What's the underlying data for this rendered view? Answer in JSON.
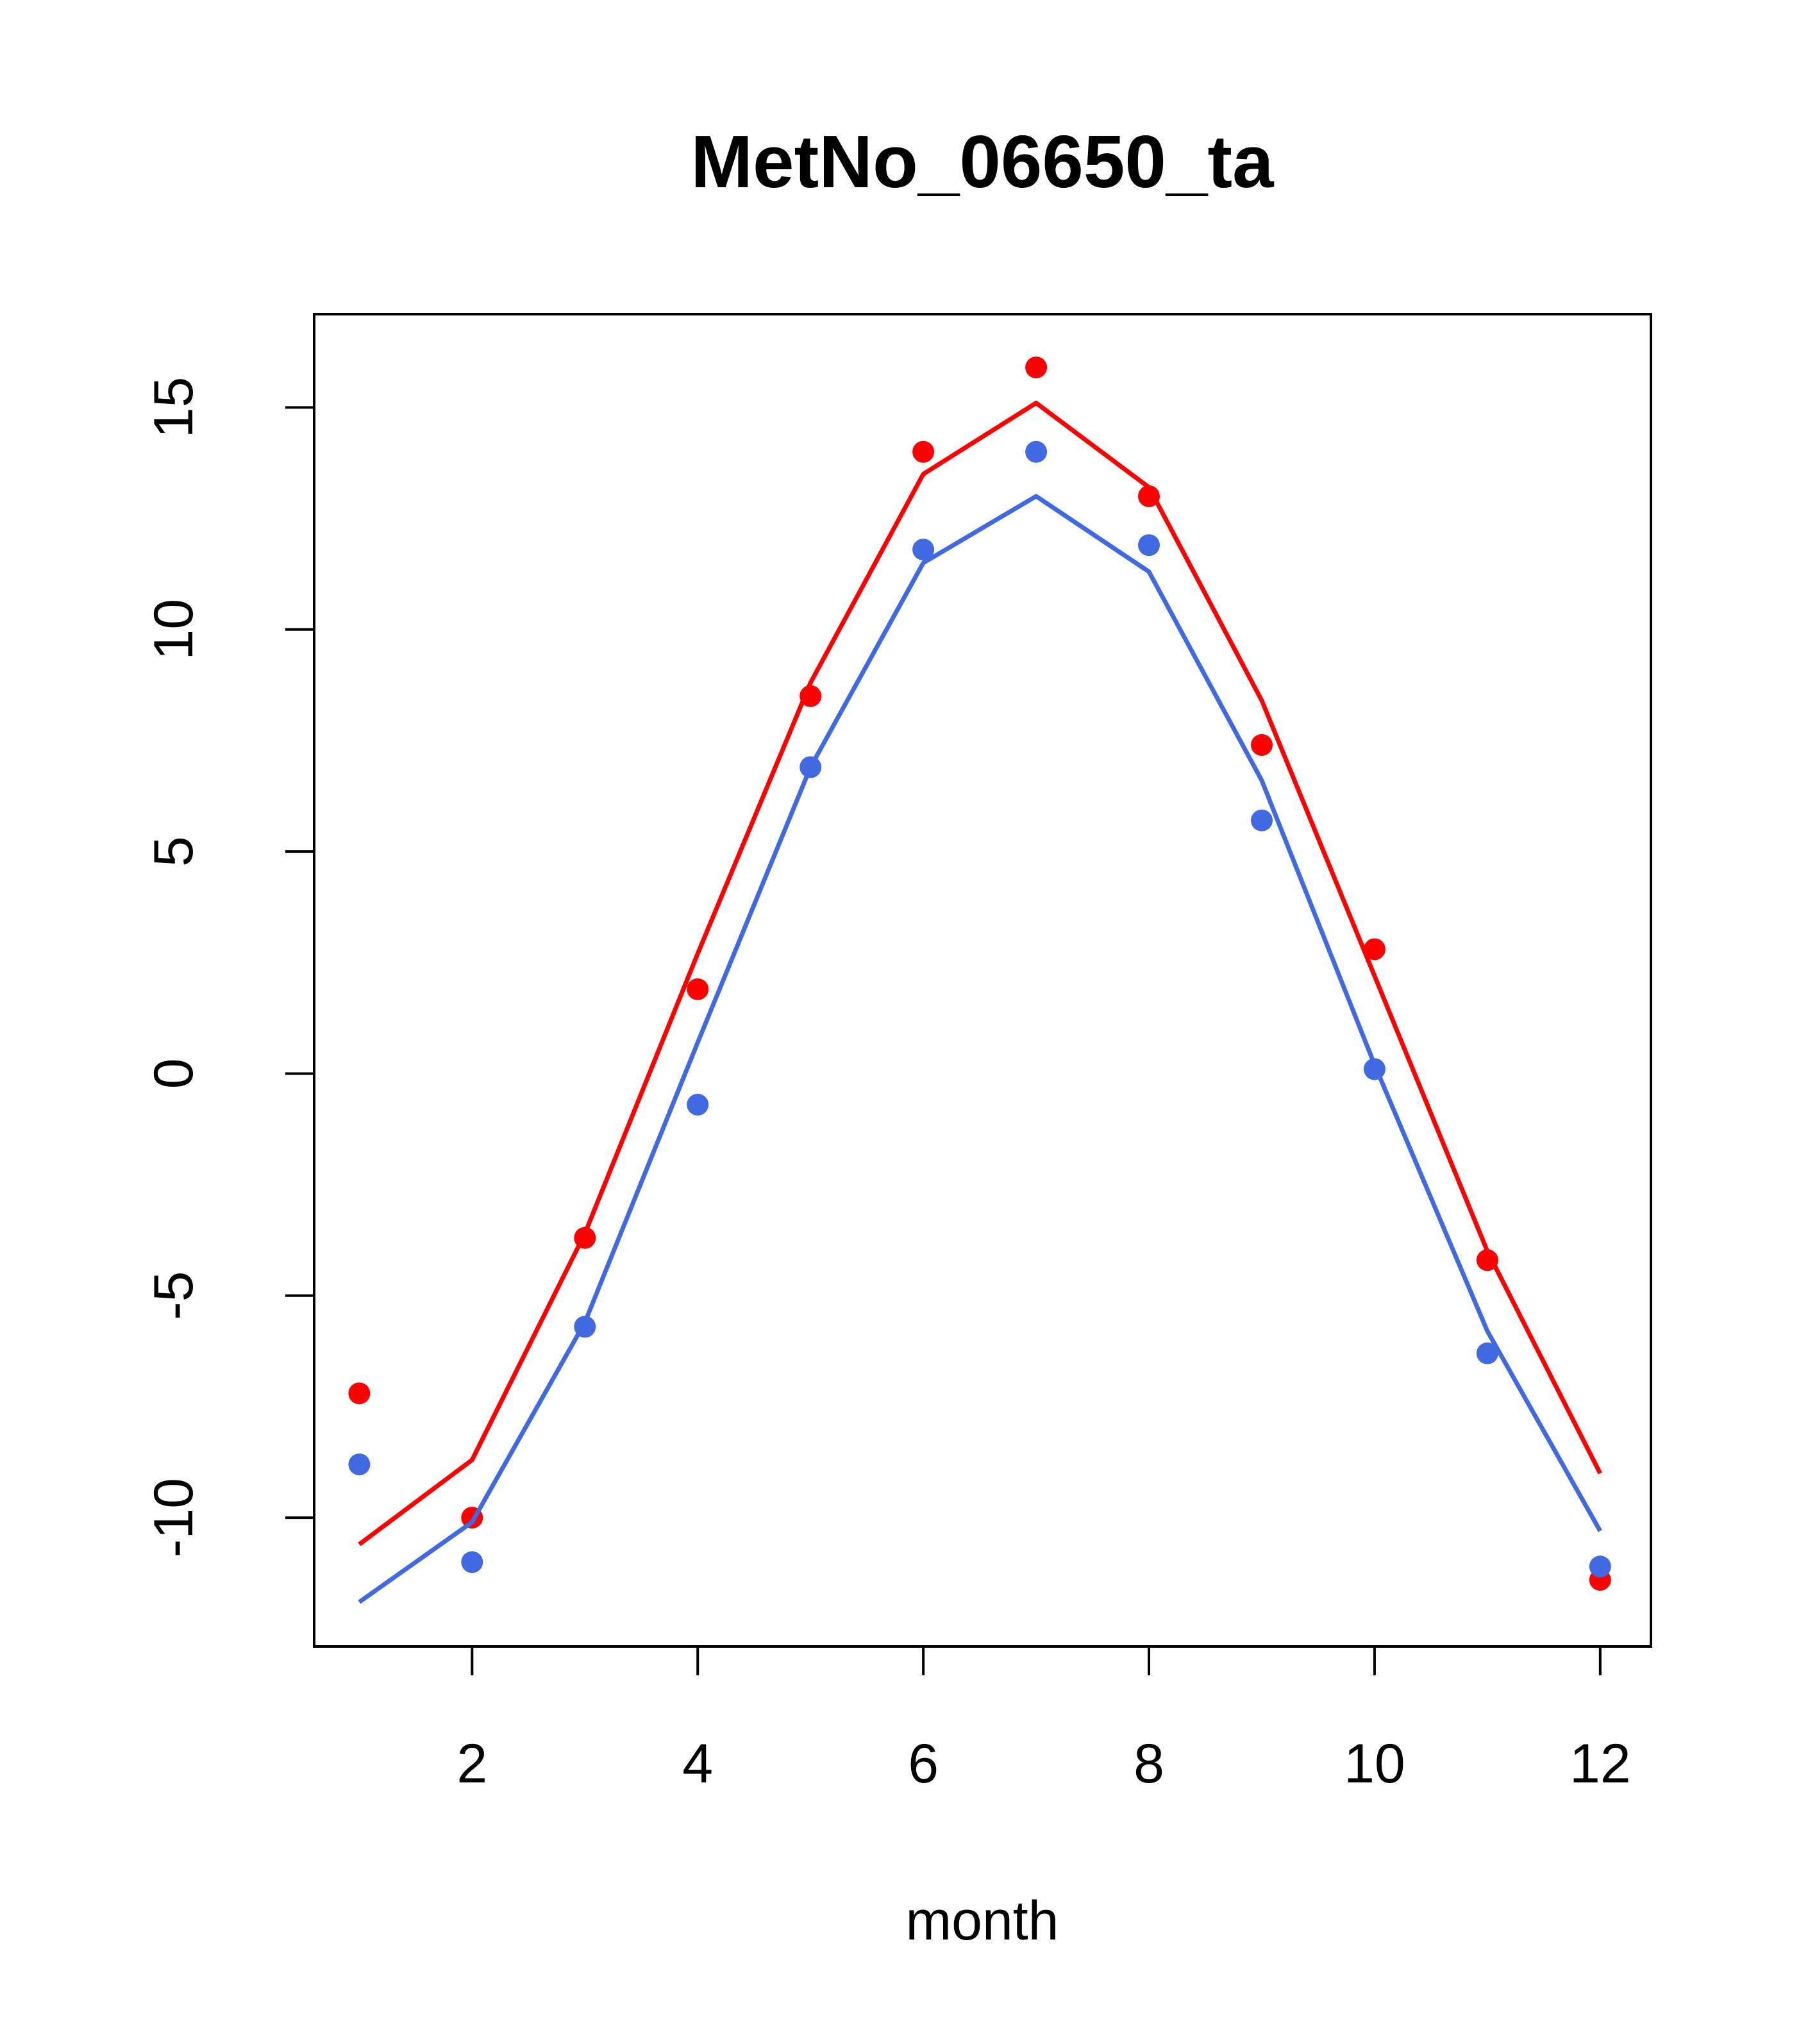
{
  "chart_data": {
    "type": "line",
    "title": "MetNo_06650_ta",
    "xlabel": "month",
    "ylabel": "",
    "xlim": [
      0.6,
      12.45
    ],
    "ylim": [
      -12.9,
      17.1
    ],
    "xticks": [
      2,
      4,
      6,
      8,
      10,
      12
    ],
    "yticks": [
      -10,
      -5,
      0,
      5,
      10,
      15
    ],
    "grid": false,
    "legend": "none",
    "series": [
      {
        "color": "#ff0000",
        "x": [
          1,
          2,
          3,
          4,
          5,
          6,
          7,
          8,
          9,
          10,
          11,
          12
        ],
        "points": [
          -7.2,
          -10.0,
          -3.7,
          1.9,
          8.5,
          14.0,
          15.9,
          13.0,
          7.4,
          2.8,
          -4.2,
          -11.4
        ],
        "line": [
          -10.6,
          -8.7,
          -3.6,
          2.7,
          8.8,
          13.5,
          15.1,
          13.2,
          8.4,
          2.2,
          -4.0,
          -9.0
        ]
      },
      {
        "color": "#4169e1",
        "x": [
          1,
          2,
          3,
          4,
          5,
          6,
          7,
          8,
          9,
          10,
          11,
          12
        ],
        "points": [
          -8.8,
          -11.0,
          -5.7,
          -0.7,
          6.9,
          11.8,
          14.0,
          11.9,
          5.7,
          0.1,
          -6.3,
          -11.1
        ],
        "line": [
          -11.9,
          -10.1,
          -5.6,
          0.7,
          6.9,
          11.5,
          13.0,
          11.3,
          6.6,
          0.2,
          -5.8,
          -10.3
        ]
      }
    ]
  }
}
